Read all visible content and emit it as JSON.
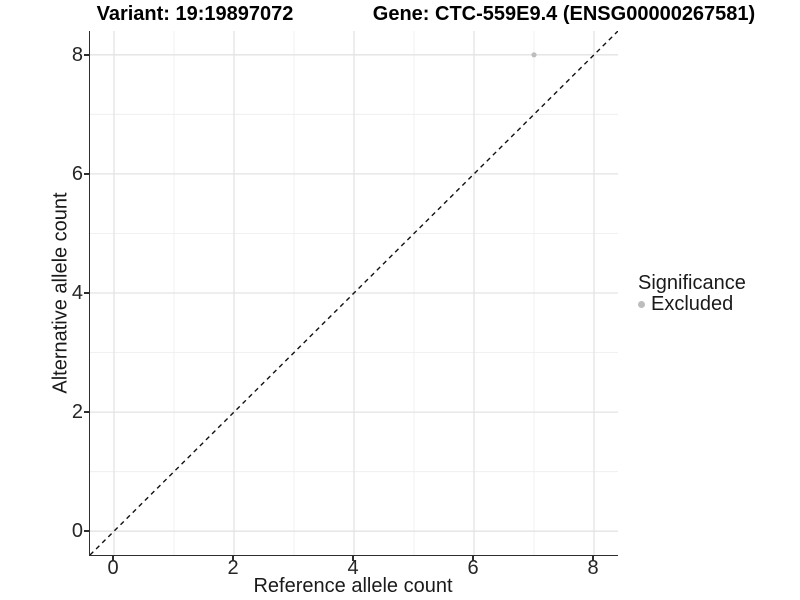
{
  "titles": {
    "variant": "Variant: 19:19897072",
    "gene": "Gene: CTC-559E9.4 (ENSG00000267581)"
  },
  "legend": {
    "title": "Significance",
    "items": [
      {
        "label": "Excluded",
        "color": "#bdbdbd"
      }
    ]
  },
  "colors": {
    "background": "#ffffff",
    "axis_line": "#2e2e2e",
    "grid_major": "#e3e3e3",
    "grid_minor": "#efefef",
    "identity_line": "#111111",
    "point": "#bdbdbd",
    "text": "#1a1a1a"
  },
  "chart_data": {
    "type": "scatter",
    "title": "Variant: 19:19897072   Gene: CTC-559E9.4 (ENSG00000267581)",
    "xlabel": "Reference allele count",
    "ylabel": "Alternative allele count",
    "xlim": [
      -0.4,
      8.4
    ],
    "ylim": [
      -0.4,
      8.4
    ],
    "x_ticks": [
      0,
      2,
      4,
      6,
      8
    ],
    "y_ticks": [
      0,
      2,
      4,
      6,
      8
    ],
    "x_minor_ticks": [
      1,
      3,
      5,
      7
    ],
    "y_minor_ticks": [
      1,
      3,
      5,
      7
    ],
    "grid": true,
    "legend_position": "right",
    "identity_line": {
      "style": "dashed",
      "from": [
        -0.4,
        -0.4
      ],
      "to": [
        8.4,
        8.4
      ]
    },
    "series": [
      {
        "name": "Excluded",
        "color": "#bdbdbd",
        "points": [
          {
            "x": 7,
            "y": 8
          }
        ]
      }
    ]
  }
}
